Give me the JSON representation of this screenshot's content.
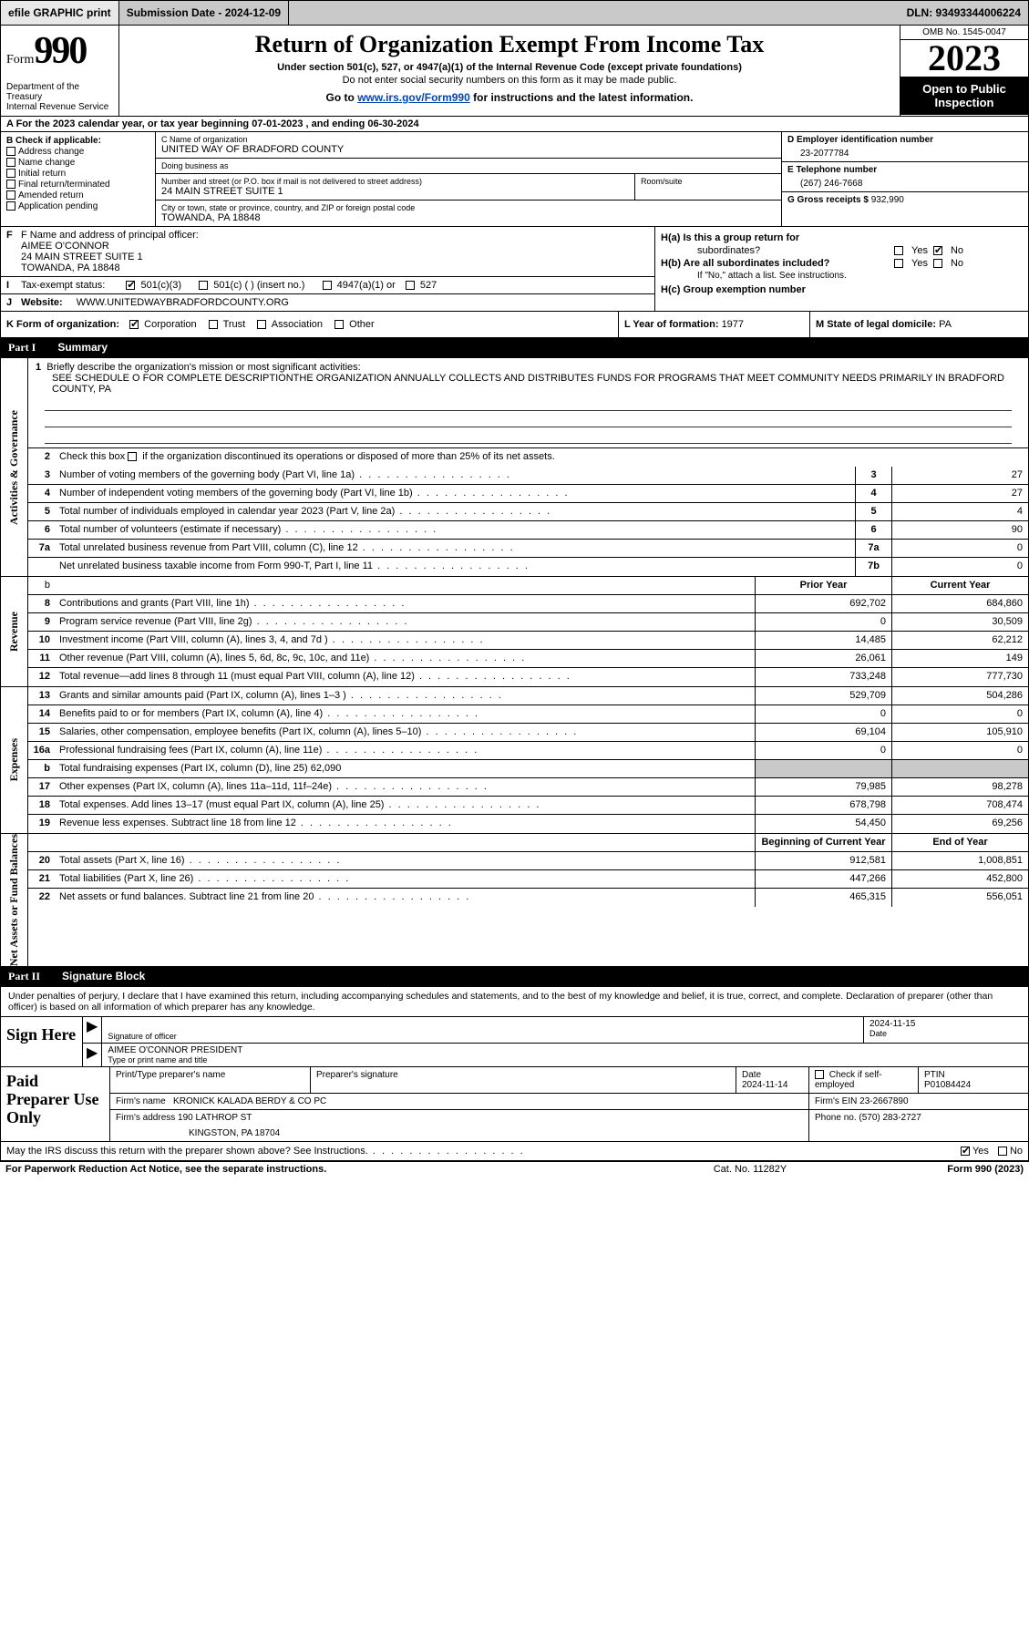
{
  "topbar": {
    "efile_label": "efile GRAPHIC print",
    "submission_label": "Submission Date - 2024-12-09",
    "dln_label": "DLN: 93493344006224"
  },
  "header": {
    "form_label": "Form",
    "form_num": "990",
    "dept": "Department of the Treasury\nInternal Revenue Service",
    "main_title": "Return of Organization Exempt From Income Tax",
    "sub1": "Under section 501(c), 527, or 4947(a)(1) of the Internal Revenue Code (except private foundations)",
    "sub2": "Do not enter social security numbers on this form as it may be made public.",
    "goto_pre": "Go to ",
    "goto_link": "www.irs.gov/Form990",
    "goto_post": " for instructions and the latest information.",
    "omb": "OMB No. 1545-0047",
    "year": "2023",
    "open": "Open to Public Inspection"
  },
  "row_a": "A For the 2023 calendar year, or tax year beginning 07-01-2023   , and ending 06-30-2024",
  "col_b": {
    "hdr": "B Check if applicable:",
    "opts": [
      "Address change",
      "Name change",
      "Initial return",
      "Final return/terminated",
      "Amended return",
      "Application pending"
    ]
  },
  "col_c": {
    "name_lbl": "C Name of organization",
    "name": "UNITED WAY OF BRADFORD COUNTY",
    "dba_lbl": "Doing business as",
    "dba": "",
    "street_lbl": "Number and street (or P.O. box if mail is not delivered to street address)",
    "street": "24 MAIN STREET SUITE 1",
    "room_lbl": "Room/suite",
    "room": "",
    "city_lbl": "City or town, state or province, country, and ZIP or foreign postal code",
    "city": "TOWANDA, PA   18848"
  },
  "col_d": {
    "ein_lbl": "D Employer identification number",
    "ein": "23-2077784",
    "phone_lbl": "E Telephone number",
    "phone": "(267) 246-7668",
    "gross_lbl": "G Gross receipts $",
    "gross": "932,990"
  },
  "block_f": {
    "f_lbl": "F Name and address of principal officer:",
    "f_name": "AIMEE O'CONNOR",
    "f_addr1": "24 MAIN STREET SUITE 1",
    "f_addr2": "TOWANDA, PA  18848",
    "i_lbl": "Tax-exempt status:",
    "i_501c3": "501(c)(3)",
    "i_501c": "501(c) (  ) (insert no.)",
    "i_4947": "4947(a)(1) or",
    "i_527": "527",
    "j_lbl": "Website:",
    "j_val": "WWW.UNITEDWAYBRADFORDCOUNTY.ORG"
  },
  "block_h": {
    "ha1": "H(a)  Is this a group return for",
    "ha2": "subordinates?",
    "hb1": "H(b)  Are all subordinates included?",
    "hb2": "If \"No,\" attach a list. See instructions.",
    "hc": "H(c)  Group exemption number",
    "yes": "Yes",
    "no": "No"
  },
  "row_k": {
    "k_lbl": "K Form of organization:",
    "k_corp": "Corporation",
    "k_trust": "Trust",
    "k_assoc": "Association",
    "k_other": "Other",
    "l_lbl": "L Year of formation: ",
    "l_val": "1977",
    "m_lbl": "M State of legal domicile: ",
    "m_val": "PA"
  },
  "part1": {
    "hdr_part": "Part I",
    "hdr_title": "Summary",
    "tab_gov": "Activities & Governance",
    "tab_rev": "Revenue",
    "tab_exp": "Expenses",
    "tab_net": "Net Assets or Fund Balances",
    "l1_lbl": "Briefly describe the organization's mission or most significant activities:",
    "l1_val": "SEE SCHEDULE O FOR COMPLETE DESCRIPTIONTHE ORGANIZATION ANNUALLY COLLECTS AND DISTRIBUTES FUNDS FOR PROGRAMS THAT MEET COMMUNITY NEEDS PRIMARILY IN BRADFORD COUNTY, PA",
    "l2": "Check this box      if the organization discontinued its operations or disposed of more than 25% of its net assets.",
    "rows_single": [
      {
        "n": "3",
        "d": "Number of voting members of the governing body (Part VI, line 1a)",
        "box": "3",
        "v": "27"
      },
      {
        "n": "4",
        "d": "Number of independent voting members of the governing body (Part VI, line 1b)",
        "box": "4",
        "v": "27"
      },
      {
        "n": "5",
        "d": "Total number of individuals employed in calendar year 2023 (Part V, line 2a)",
        "box": "5",
        "v": "4"
      },
      {
        "n": "6",
        "d": "Total number of volunteers (estimate if necessary)",
        "box": "6",
        "v": "90"
      },
      {
        "n": "7a",
        "d": "Total unrelated business revenue from Part VIII, column (C), line 12",
        "box": "7a",
        "v": "0"
      },
      {
        "n": "",
        "d": "Net unrelated business taxable income from Form 990-T, Part I, line 11",
        "box": "7b",
        "v": "0"
      }
    ],
    "col_hdr_prior": "Prior Year",
    "col_hdr_curr": "Current Year",
    "rows_rev": [
      {
        "n": "8",
        "d": "Contributions and grants (Part VIII, line 1h)",
        "p": "692,702",
        "c": "684,860"
      },
      {
        "n": "9",
        "d": "Program service revenue (Part VIII, line 2g)",
        "p": "0",
        "c": "30,509"
      },
      {
        "n": "10",
        "d": "Investment income (Part VIII, column (A), lines 3, 4, and 7d )",
        "p": "14,485",
        "c": "62,212"
      },
      {
        "n": "11",
        "d": "Other revenue (Part VIII, column (A), lines 5, 6d, 8c, 9c, 10c, and 11e)",
        "p": "26,061",
        "c": "149"
      },
      {
        "n": "12",
        "d": "Total revenue—add lines 8 through 11 (must equal Part VIII, column (A), line 12)",
        "p": "733,248",
        "c": "777,730"
      }
    ],
    "rows_exp": [
      {
        "n": "13",
        "d": "Grants and similar amounts paid (Part IX, column (A), lines 1–3 )",
        "p": "529,709",
        "c": "504,286"
      },
      {
        "n": "14",
        "d": "Benefits paid to or for members (Part IX, column (A), line 4)",
        "p": "0",
        "c": "0"
      },
      {
        "n": "15",
        "d": "Salaries, other compensation, employee benefits (Part IX, column (A), lines 5–10)",
        "p": "69,104",
        "c": "105,910"
      },
      {
        "n": "16a",
        "d": "Professional fundraising fees (Part IX, column (A), line 11e)",
        "p": "0",
        "c": "0"
      },
      {
        "n": "b",
        "d": "Total fundraising expenses (Part IX, column (D), line 25) 62,090",
        "p": "GREY",
        "c": "GREY"
      },
      {
        "n": "17",
        "d": "Other expenses (Part IX, column (A), lines 11a–11d, 11f–24e)",
        "p": "79,985",
        "c": "98,278"
      },
      {
        "n": "18",
        "d": "Total expenses. Add lines 13–17 (must equal Part IX, column (A), line 25)",
        "p": "678,798",
        "c": "708,474"
      },
      {
        "n": "19",
        "d": "Revenue less expenses. Subtract line 18 from line 12",
        "p": "54,450",
        "c": "69,256"
      }
    ],
    "col_hdr_beg": "Beginning of Current Year",
    "col_hdr_end": "End of Year",
    "rows_net": [
      {
        "n": "20",
        "d": "Total assets (Part X, line 16)",
        "p": "912,581",
        "c": "1,008,851"
      },
      {
        "n": "21",
        "d": "Total liabilities (Part X, line 26)",
        "p": "447,266",
        "c": "452,800"
      },
      {
        "n": "22",
        "d": "Net assets or fund balances. Subtract line 21 from line 20",
        "p": "465,315",
        "c": "556,051"
      }
    ]
  },
  "part2": {
    "hdr_part": "Part II",
    "hdr_title": "Signature Block",
    "intro": "Under penalties of perjury, I declare that I have examined this return, including accompanying schedules and statements, and to the best of my knowledge and belief, it is true, correct, and complete. Declaration of preparer (other than officer) is based on all information of which preparer has any knowledge.",
    "sign_here": "Sign Here",
    "sig_date": "2024-11-15",
    "sig_lbl": "Signature of officer",
    "date_lbl": "Date",
    "officer": "AIMEE O'CONNOR PRESIDENT",
    "type_lbl": "Type or print name and title",
    "paid": "Paid Preparer Use Only",
    "prep_name_lbl": "Print/Type preparer's name",
    "prep_sig_lbl": "Preparer's signature",
    "prep_date_lbl": "Date",
    "prep_date": "2024-11-14",
    "self_lbl": "Check       if self-employed",
    "ptin_lbl": "PTIN",
    "ptin": "P01084424",
    "firm_name_lbl": "Firm's name  ",
    "firm_name": "KRONICK KALADA BERDY & CO PC",
    "firm_ein_lbl": "Firm's EIN  ",
    "firm_ein": "23-2667890",
    "firm_addr_lbl": "Firm's address ",
    "firm_addr1": "190 LATHROP ST",
    "firm_addr2": "KINGSTON, PA  18704",
    "firm_phone_lbl": "Phone no. ",
    "firm_phone": "(570) 283-2727",
    "discuss": "May the IRS discuss this return with the preparer shown above? See Instructions.",
    "yes": "Yes",
    "no": "No"
  },
  "footer": {
    "l": "For Paperwork Reduction Act Notice, see the separate instructions.",
    "m": "Cat. No. 11282Y",
    "r": "Form 990 (2023)"
  },
  "colors": {
    "grey": "#c9c9c9",
    "link": "#0645ad",
    "black": "#000000"
  }
}
